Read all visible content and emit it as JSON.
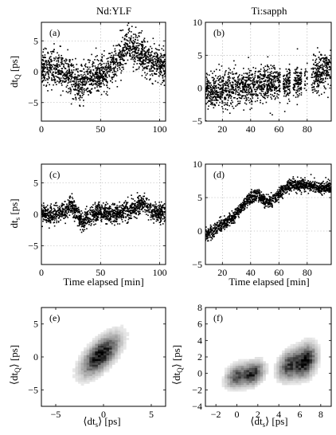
{
  "figure": {
    "col_titles": [
      "Nd:YLF",
      "Ti:sapph"
    ],
    "row_labels": {
      "top": "dt_Q [ps]",
      "mid": "dt_s [ps]",
      "bottom": "⟨dt_Q⟩ [ps]"
    },
    "xlabel_time": "Time elapsed [min]",
    "xlabel_hist": "⟨dt_s⟩ [ps]"
  },
  "chart_data": [
    {
      "id": "a",
      "panel_label": "(a)",
      "type": "scatter",
      "column_title": "Nd:YLF",
      "xlabel": "",
      "ylabel": "dt_Q [ps]",
      "xlim": [
        0,
        105
      ],
      "ylim": [
        -8,
        8
      ],
      "xticks": [
        0,
        50,
        100
      ],
      "yticks": [
        -5,
        0,
        5
      ],
      "grid": true,
      "marker_color": "#000000",
      "trend": {
        "x": [
          0,
          10,
          20,
          30,
          33,
          36,
          40,
          50,
          60,
          65,
          70,
          75,
          80,
          90,
          100,
          105
        ],
        "y": [
          0.5,
          0.5,
          0.0,
          -1.5,
          -2.8,
          -1.5,
          -1.0,
          -0.5,
          0.5,
          2.0,
          3.5,
          4.5,
          3.5,
          2.0,
          1.0,
          1.0
        ]
      },
      "noise_sd": 1.4,
      "n_points": 1600
    },
    {
      "id": "b",
      "panel_label": "(b)",
      "type": "scatter",
      "column_title": "Ti:sapph",
      "xlabel": "",
      "ylabel": "",
      "xlim": [
        8,
        97
      ],
      "ylim": [
        -5,
        10
      ],
      "xticks": [
        20,
        40,
        60,
        80
      ],
      "yticks": [
        -5,
        0,
        5,
        10
      ],
      "grid": true,
      "marker_color": "#000000",
      "trend": {
        "x": [
          10,
          20,
          30,
          40,
          50,
          60,
          70,
          80,
          90,
          97
        ],
        "y": [
          -0.5,
          -0.2,
          0.0,
          0.2,
          0.5,
          0.8,
          0.8,
          1.5,
          2.5,
          3.0
        ]
      },
      "gaps": [
        [
          61,
          63
        ],
        [
          68,
          70
        ],
        [
          76,
          78
        ],
        [
          80,
          83
        ]
      ],
      "noise_sd": 1.3,
      "n_points": 1500
    },
    {
      "id": "c",
      "panel_label": "(c)",
      "type": "scatter",
      "column_title": "Nd:YLF",
      "xlabel": "Time elapsed [min]",
      "ylabel": "dt_s [ps]",
      "xlim": [
        0,
        105
      ],
      "ylim": [
        -8,
        8
      ],
      "xticks": [
        0,
        50,
        100
      ],
      "yticks": [
        -5,
        0,
        5
      ],
      "grid": true,
      "marker_color": "#000000",
      "trend": {
        "x": [
          0,
          10,
          20,
          25,
          30,
          35,
          40,
          50,
          60,
          70,
          80,
          85,
          90,
          100,
          105
        ],
        "y": [
          0.0,
          0.0,
          0.5,
          1.5,
          0.0,
          -1.5,
          -0.5,
          0.5,
          0.0,
          0.5,
          1.0,
          2.0,
          1.0,
          0.0,
          0.0
        ]
      },
      "noise_sd": 0.75,
      "n_points": 1500
    },
    {
      "id": "d",
      "panel_label": "(d)",
      "type": "scatter",
      "column_title": "Ti:sapph",
      "xlabel": "Time elapsed [min]",
      "ylabel": "",
      "xlim": [
        8,
        97
      ],
      "ylim": [
        -5,
        10
      ],
      "xticks": [
        20,
        40,
        60,
        80
      ],
      "yticks": [
        -5,
        0,
        5,
        10
      ],
      "grid": true,
      "marker_color": "#000000",
      "trend": {
        "x": [
          10,
          20,
          28,
          35,
          40,
          45,
          50,
          55,
          60,
          65,
          70,
          80,
          90,
          97
        ],
        "y": [
          -0.5,
          1.0,
          2.0,
          4.0,
          5.0,
          5.5,
          4.5,
          4.5,
          5.5,
          6.5,
          7.0,
          6.8,
          6.5,
          6.5
        ]
      },
      "noise_sd": 0.45,
      "n_points": 1400
    },
    {
      "id": "e",
      "panel_label": "(e)",
      "type": "heatmap",
      "column_title": "Nd:YLF",
      "xlabel": "⟨dt_s⟩ [ps]",
      "ylabel": "⟨dt_Q⟩ [ps]",
      "xlim": [
        -6.5,
        6.5
      ],
      "ylim": [
        -7.5,
        7.5
      ],
      "xticks": [
        -5,
        0,
        5
      ],
      "yticks": [
        -5,
        0,
        5
      ],
      "grid": false,
      "colormap": "gray_r",
      "clusters": [
        {
          "cx": -0.3,
          "cy": 0.3,
          "sx": 1.1,
          "sy": 1.7,
          "rho": 0.65,
          "w": 1.0
        }
      ],
      "bins": [
        44,
        52
      ]
    },
    {
      "id": "f",
      "panel_label": "(f)",
      "type": "heatmap",
      "column_title": "Ti:sapph",
      "xlabel": "⟨dt_s⟩ [ps]",
      "ylabel": "⟨dt_Q⟩ [ps]",
      "xlim": [
        -3,
        9
      ],
      "ylim": [
        -4,
        8
      ],
      "xticks": [
        -2,
        0,
        2,
        4,
        6,
        8
      ],
      "yticks": [
        -4,
        -2,
        0,
        2,
        4,
        6,
        8
      ],
      "grid": false,
      "colormap": "gray_r",
      "clusters": [
        {
          "cx": 0.0,
          "cy": -0.3,
          "sx": 0.6,
          "sy": 0.8,
          "rho": 0.3,
          "w": 0.6
        },
        {
          "cx": 1.5,
          "cy": 0.0,
          "sx": 0.6,
          "sy": 0.8,
          "rho": 0.3,
          "w": 0.8
        },
        {
          "cx": 5.0,
          "cy": 1.0,
          "sx": 0.6,
          "sy": 1.0,
          "rho": 0.3,
          "w": 0.7
        },
        {
          "cx": 6.5,
          "cy": 1.5,
          "sx": 0.6,
          "sy": 1.1,
          "rho": 0.3,
          "w": 1.0
        }
      ],
      "bins": [
        46,
        46
      ]
    }
  ]
}
